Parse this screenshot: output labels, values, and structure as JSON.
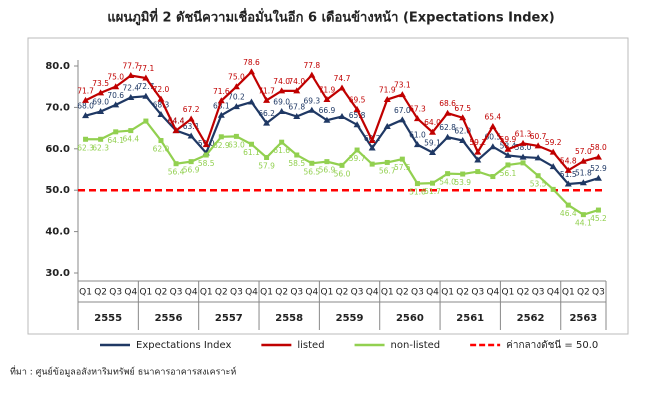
{
  "chart_data": {
    "type": "line",
    "title": "แผนภูมิที่ 2 ดัชนีความเชื่อมั่นในอีก 6 เดือนข้างหน้า (Expectations Index)",
    "categories": [
      "Q1",
      "Q2",
      "Q3",
      "Q4",
      "Q1",
      "Q2",
      "Q3",
      "Q4",
      "Q1",
      "Q2",
      "Q3",
      "Q4",
      "Q1",
      "Q2",
      "Q3",
      "Q4",
      "Q1",
      "Q2",
      "Q3",
      "Q4",
      "Q1",
      "Q2",
      "Q3",
      "Q4",
      "Q1",
      "Q2",
      "Q3",
      "Q4",
      "Q1",
      "Q2",
      "Q3",
      "Q4",
      "Q1",
      "Q2",
      "Q3"
    ],
    "x_groups": [
      "2555",
      "2556",
      "2557",
      "2558",
      "2559",
      "2560",
      "2561",
      "2562",
      "2563"
    ],
    "ylim": [
      30,
      80
    ],
    "yticks": [
      {
        "value": 30,
        "label": "30.0"
      },
      {
        "value": 40,
        "label": "40.0"
      },
      {
        "value": 50,
        "label": "50.0"
      },
      {
        "value": 60,
        "label": "60.0"
      },
      {
        "value": 70,
        "label": "70.0"
      },
      {
        "value": 80,
        "label": "80.0"
      }
    ],
    "grid": false,
    "legend": "bottom",
    "reference_line": {
      "value": 50,
      "label": "ค่ากลางดัชนี = 50.0",
      "color": "#ff0000"
    },
    "series": [
      {
        "name": "Expectations Index",
        "color": "#1f3864",
        "marker": "triangle",
        "label_pos": "above",
        "values": [
          68.0,
          69.0,
          70.6,
          72.4,
          72.7,
          68.3,
          64.4,
          63.1,
          59.0,
          68.1,
          70.2,
          71.3,
          66.2,
          69.0,
          67.8,
          69.3,
          66.9,
          67.8,
          65.8,
          60.2,
          65.4,
          67.0,
          61.0,
          59.1,
          62.8,
          62.0,
          57.3,
          60.5,
          58.4,
          58.0,
          57.8,
          55.7,
          51.5,
          51.8,
          52.9
        ],
        "value_labels": [
          "68.0",
          "69.0",
          "70.6",
          "72.4",
          "72.7",
          "68.3",
          "64.4",
          "63.1",
          "59.0",
          "68.1",
          "70.2",
          null,
          "66.2",
          "69.0",
          "67.8",
          "69.3",
          "66.9",
          null,
          "65.8",
          "60.2",
          null,
          "67.0",
          "61.0",
          "59.1",
          "62.8",
          "62.0",
          null,
          "60.5",
          "58.4",
          "58.0",
          null,
          null,
          "51.5",
          "51.8",
          "52.9"
        ]
      },
      {
        "name": "listed",
        "color": "#c00000",
        "marker": "triangle",
        "label_pos": "above",
        "values": [
          71.7,
          73.5,
          75.0,
          77.7,
          77.1,
          72.0,
          64.4,
          67.2,
          61.0,
          71.6,
          75.0,
          78.6,
          71.7,
          74.0,
          74.0,
          77.8,
          71.9,
          74.7,
          69.5,
          62.0,
          71.9,
          73.1,
          67.3,
          64.0,
          68.6,
          67.5,
          59.2,
          65.4,
          59.9,
          61.3,
          60.7,
          59.2,
          54.8,
          57.0,
          58.0
        ],
        "value_labels": [
          "71.7",
          "73.5",
          "75.0",
          "77.7",
          "77.1",
          "72.0",
          "64.4",
          "67.2",
          null,
          "71.6",
          "75.0",
          "78.6",
          "71.7",
          "74.0",
          "74.0",
          "77.8",
          "71.9",
          "74.7",
          "69.5",
          null,
          "71.9",
          "73.1",
          "67.3",
          "64.0",
          "68.6",
          "67.5",
          "59.2",
          "65.4",
          "59.9",
          "61.3",
          "60.7",
          "59.2",
          "54.8",
          "57.0",
          "58.0"
        ]
      },
      {
        "name": "non-listed",
        "color": "#92d050",
        "marker": "square",
        "label_pos": "below",
        "values": [
          62.3,
          62.3,
          64.1,
          64.4,
          66.7,
          62.0,
          56.4,
          56.9,
          58.5,
          62.9,
          63.0,
          61.1,
          57.9,
          61.6,
          58.5,
          56.5,
          56.9,
          56.0,
          59.7,
          56.3,
          56.7,
          57.5,
          51.6,
          51.7,
          54.0,
          53.9,
          54.5,
          53.3,
          56.1,
          56.6,
          53.5,
          50.2,
          46.4,
          44.1,
          45.2
        ],
        "value_labels": [
          "62.3",
          "62.3",
          "64.1",
          "64.4",
          null,
          "62.0",
          "56.4",
          "56.9",
          "58.5",
          "62.9",
          "63.0",
          "61.1",
          "57.9",
          "61.6",
          "58.5",
          "56.5",
          "56.9",
          "56.0",
          "59.7",
          null,
          "56.7",
          "57.5",
          "51.6",
          "51.7",
          "54.0",
          "53.9",
          null,
          null,
          "56.1",
          null,
          "53.5",
          null,
          "46.4",
          "44.1",
          "45.2"
        ]
      }
    ],
    "source": "ที่มา : ศูนย์ข้อมูลอสังหาริมทรัพย์ ธนาคารอาคารสงเคราะห์"
  }
}
